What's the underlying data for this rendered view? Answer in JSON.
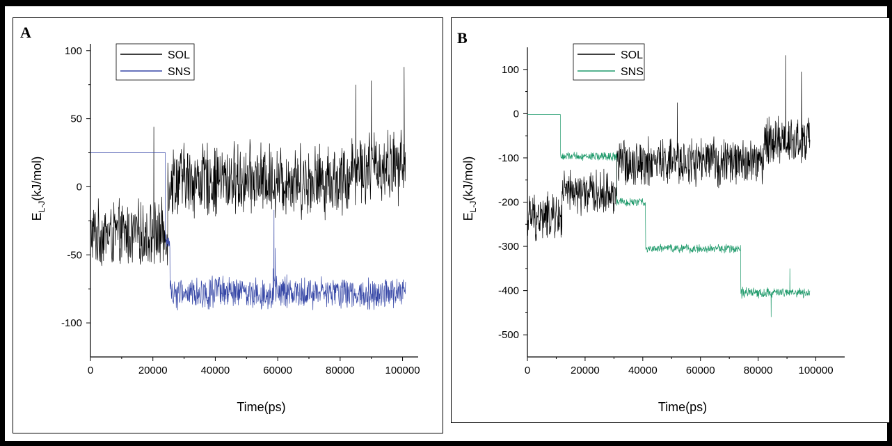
{
  "chart_data": [
    {
      "panel_label": "A",
      "type": "line",
      "xlabel": "Time(ps)",
      "ylabel_main": "E",
      "ylabel_sub": "L-J",
      "ylabel_unit": "(kJ/mol)",
      "xlim": [
        0,
        105000
      ],
      "ylim": [
        -125,
        105
      ],
      "xticks": [
        0,
        20000,
        40000,
        60000,
        80000,
        100000
      ],
      "yticks": [
        -100,
        -50,
        0,
        50,
        100
      ],
      "legend_position": "top-left",
      "series": [
        {
          "name": "SOL",
          "color": "#000000",
          "segments": [
            {
              "x": [
                0,
                24800
              ],
              "mean": -35,
              "noise": 24
            },
            {
              "x": [
                24800,
                83000
              ],
              "mean": 5,
              "noise": 27
            },
            {
              "x": [
                83000,
                101000
              ],
              "mean": 15,
              "noise": 27
            }
          ],
          "spikes": [
            [
              100500,
              88
            ],
            [
              85000,
              75
            ],
            [
              90000,
              78
            ],
            [
              20300,
              44
            ]
          ]
        },
        {
          "name": "SNS",
          "color": "#3546a6",
          "segments": [
            {
              "x": [
                0,
                24000
              ],
              "mean": 25,
              "noise": 0
            },
            {
              "x": [
                24000,
                25500
              ],
              "mean": -40,
              "noise": 6
            },
            {
              "x": [
                25500,
                101000
              ],
              "mean": -78,
              "noise": 12
            }
          ],
          "spikes": [
            [
              58800,
              -17
            ],
            [
              59200,
              -45
            ],
            [
              58500,
              -60
            ]
          ]
        }
      ]
    },
    {
      "panel_label": "B",
      "type": "line",
      "xlabel": "Time(ps)",
      "ylabel_main": "E",
      "ylabel_sub": "L-J",
      "ylabel_unit": "(kJ/mol)",
      "xlim": [
        0,
        110000
      ],
      "ylim": [
        -550,
        150
      ],
      "xticks": [
        0,
        20000,
        40000,
        60000,
        80000,
        100000
      ],
      "yticks": [
        -500,
        -400,
        -300,
        -200,
        -100,
        0,
        100
      ],
      "legend_position": "top-left",
      "series": [
        {
          "name": "SOL",
          "color": "#000000",
          "segments": [
            {
              "x": [
                0,
                12000
              ],
              "mean": -235,
              "noise": 55
            },
            {
              "x": [
                12000,
                31000
              ],
              "mean": -180,
              "noise": 50
            },
            {
              "x": [
                31000,
                82000
              ],
              "mean": -110,
              "noise": 55
            },
            {
              "x": [
                82000,
                98000
              ],
              "mean": -60,
              "noise": 55
            }
          ],
          "spikes": [
            [
              89500,
              132
            ],
            [
              52000,
              25
            ],
            [
              95000,
              95
            ]
          ]
        },
        {
          "name": "SNS",
          "color": "#1f9a6b",
          "segments": [
            {
              "x": [
                0,
                11500
              ],
              "mean": -2,
              "noise": 0
            },
            {
              "x": [
                11500,
                31000
              ],
              "mean": -97,
              "noise": 10
            },
            {
              "x": [
                31000,
                41000
              ],
              "mean": -200,
              "noise": 10
            },
            {
              "x": [
                41000,
                74000
              ],
              "mean": -305,
              "noise": 10
            },
            {
              "x": [
                74000,
                98000
              ],
              "mean": -405,
              "noise": 12
            }
          ],
          "spikes": [
            [
              84500,
              -460
            ],
            [
              91000,
              -350
            ]
          ]
        }
      ]
    }
  ]
}
